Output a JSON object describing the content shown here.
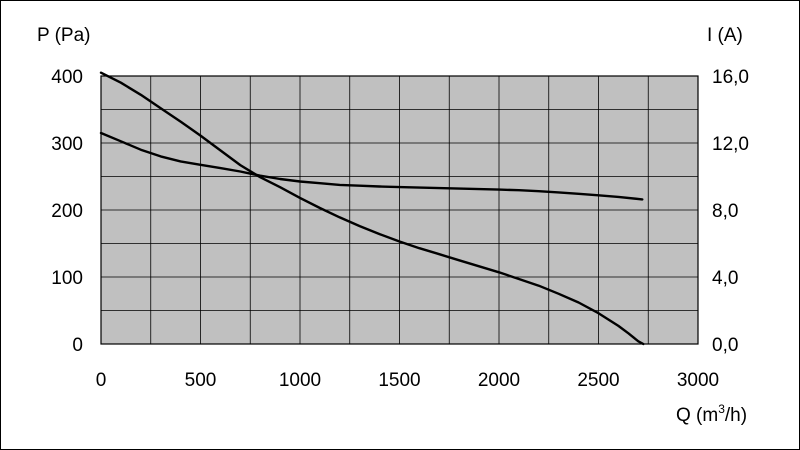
{
  "chart_data": {
    "type": "line",
    "title": "",
    "grid": true,
    "colors": {
      "plot_background": "#c0c0c0",
      "grid": "#000000",
      "series": "#000000",
      "frame": "#000000"
    },
    "xlabel": {
      "main": "Q (m",
      "sup": "3",
      "tail": "/h)"
    },
    "x_axis": {
      "lim": [
        0,
        3000
      ],
      "ticks": [
        0,
        500,
        1000,
        1500,
        2000,
        2500,
        3000
      ],
      "tick_labels": [
        "0",
        "500",
        "1000",
        "1500",
        "2000",
        "2500",
        "3000"
      ],
      "minor_grid_step": 250
    },
    "y_left": {
      "label": "P (Pa)",
      "lim": [
        0,
        400
      ],
      "ticks": [
        0,
        100,
        200,
        300,
        400
      ],
      "tick_labels": [
        "0",
        "100",
        "200",
        "300",
        "400"
      ],
      "minor_grid_step": 50
    },
    "y_right": {
      "label": "I (A)",
      "lim": [
        0,
        16
      ],
      "ticks": [
        0,
        4,
        8,
        12,
        16
      ],
      "tick_labels": [
        "0,0",
        "4,0",
        "8,0",
        "12,0",
        "16,0"
      ]
    },
    "series": [
      {
        "axis": "left",
        "points": [
          [
            0,
            405
          ],
          [
            100,
            390
          ],
          [
            200,
            372
          ],
          [
            300,
            352
          ],
          [
            400,
            332
          ],
          [
            500,
            311
          ],
          [
            600,
            289
          ],
          [
            700,
            267
          ],
          [
            800,
            249
          ],
          [
            900,
            234
          ],
          [
            1000,
            218
          ],
          [
            1100,
            203
          ],
          [
            1200,
            189
          ],
          [
            1300,
            176
          ],
          [
            1400,
            164
          ],
          [
            1500,
            153
          ],
          [
            1600,
            143
          ],
          [
            1700,
            134
          ],
          [
            1800,
            125
          ],
          [
            1900,
            116
          ],
          [
            2000,
            107
          ],
          [
            2100,
            97
          ],
          [
            2200,
            87
          ],
          [
            2300,
            75
          ],
          [
            2400,
            62
          ],
          [
            2500,
            46
          ],
          [
            2600,
            27
          ],
          [
            2650,
            16
          ],
          [
            2700,
            4
          ],
          [
            2725,
            0
          ]
        ]
      },
      {
        "axis": "right",
        "points": [
          [
            0,
            12.6
          ],
          [
            100,
            12.1
          ],
          [
            200,
            11.6
          ],
          [
            300,
            11.2
          ],
          [
            400,
            10.9
          ],
          [
            500,
            10.7
          ],
          [
            600,
            10.5
          ],
          [
            700,
            10.3
          ],
          [
            800,
            10.05
          ],
          [
            900,
            9.85
          ],
          [
            1000,
            9.7
          ],
          [
            1100,
            9.6
          ],
          [
            1200,
            9.5
          ],
          [
            1300,
            9.45
          ],
          [
            1400,
            9.4
          ],
          [
            1500,
            9.37
          ],
          [
            1600,
            9.34
          ],
          [
            1700,
            9.31
          ],
          [
            1800,
            9.28
          ],
          [
            1900,
            9.25
          ],
          [
            2000,
            9.22
          ],
          [
            2100,
            9.18
          ],
          [
            2200,
            9.12
          ],
          [
            2300,
            9.05
          ],
          [
            2400,
            8.97
          ],
          [
            2500,
            8.88
          ],
          [
            2600,
            8.78
          ],
          [
            2720,
            8.63
          ]
        ]
      }
    ]
  }
}
